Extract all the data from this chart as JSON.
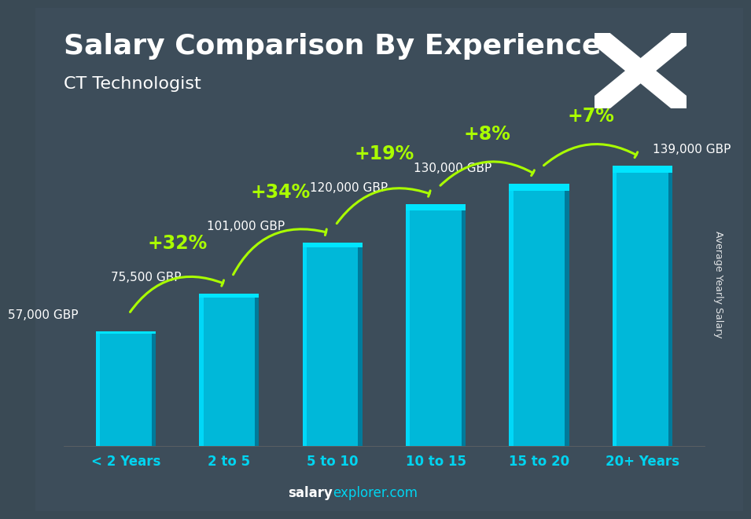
{
  "title": "Salary Comparison By Experience",
  "subtitle": "CT Technologist",
  "categories": [
    "< 2 Years",
    "2 to 5",
    "5 to 10",
    "10 to 15",
    "15 to 20",
    "20+ Years"
  ],
  "values": [
    57000,
    75500,
    101000,
    120000,
    130000,
    139000
  ],
  "labels": [
    "57,000 GBP",
    "75,500 GBP",
    "101,000 GBP",
    "120,000 GBP",
    "130,000 GBP",
    "139,000 GBP"
  ],
  "pct_changes": [
    "+32%",
    "+34%",
    "+19%",
    "+8%",
    "+7%"
  ],
  "bar_color_main": "#00b8d9",
  "bar_color_light": "#00d8f8",
  "bar_color_dark": "#007a9a",
  "bar_color_top": "#00e5ff",
  "ylabel": "Average Yearly Salary",
  "footer_salary": "salary",
  "footer_explorer": "explorer.com",
  "bg_color": "#4a5a6a",
  "text_color": "#ffffff",
  "pct_color": "#aaff00",
  "title_fontsize": 26,
  "subtitle_fontsize": 16,
  "label_fontsize": 11,
  "pct_fontsize": 17,
  "axis_fontsize": 12,
  "ylim_max": 155000,
  "flag_color": "#4169e1",
  "flag_cross": "#ffffff",
  "salary_label_positions": [
    [
      0,
      -0.45,
      4000,
      "left"
    ],
    [
      1,
      -0.45,
      4000,
      "left"
    ],
    [
      2,
      -0.45,
      4000,
      "left"
    ],
    [
      3,
      -0.45,
      4000,
      "left"
    ],
    [
      4,
      -0.45,
      4000,
      "left"
    ],
    [
      5,
      0.08,
      4000,
      "left"
    ]
  ],
  "pct_arrow_data": [
    [
      0,
      1,
      "+32%",
      -0.4
    ],
    [
      1,
      2,
      "+34%",
      -0.4
    ],
    [
      2,
      3,
      "+19%",
      -0.38
    ],
    [
      3,
      4,
      "+8%",
      -0.38
    ],
    [
      4,
      5,
      "+7%",
      -0.35
    ]
  ]
}
